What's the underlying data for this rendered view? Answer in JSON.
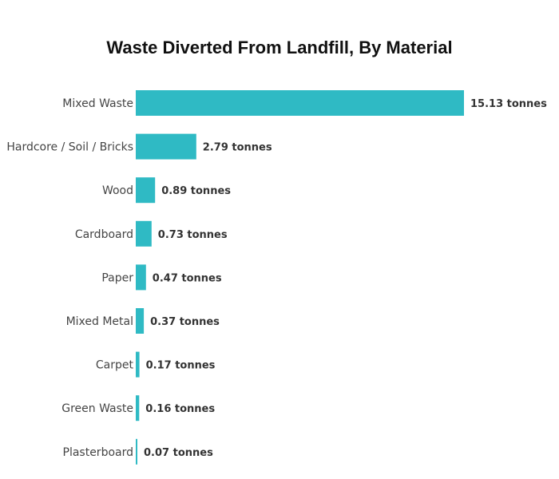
{
  "chart_data": {
    "type": "bar",
    "orientation": "horizontal",
    "title": "Waste Diverted From Landfill, By Material",
    "xlabel": "",
    "ylabel": "",
    "unit": "tonnes",
    "value_label_suffix": " tonnes",
    "categories": [
      "Mixed Waste",
      "Hardcore / Soil / Bricks",
      "Wood",
      "Cardboard",
      "Paper",
      "Mixed Metal",
      "Carpet",
      "Green Waste",
      "Plasterboard"
    ],
    "values": [
      15.13,
      2.79,
      0.89,
      0.73,
      0.47,
      0.37,
      0.17,
      0.16,
      0.07
    ],
    "xlim": [
      0,
      15.13
    ],
    "grid": false,
    "legend": "none",
    "colors": {
      "bar": "#2fbac4"
    }
  }
}
